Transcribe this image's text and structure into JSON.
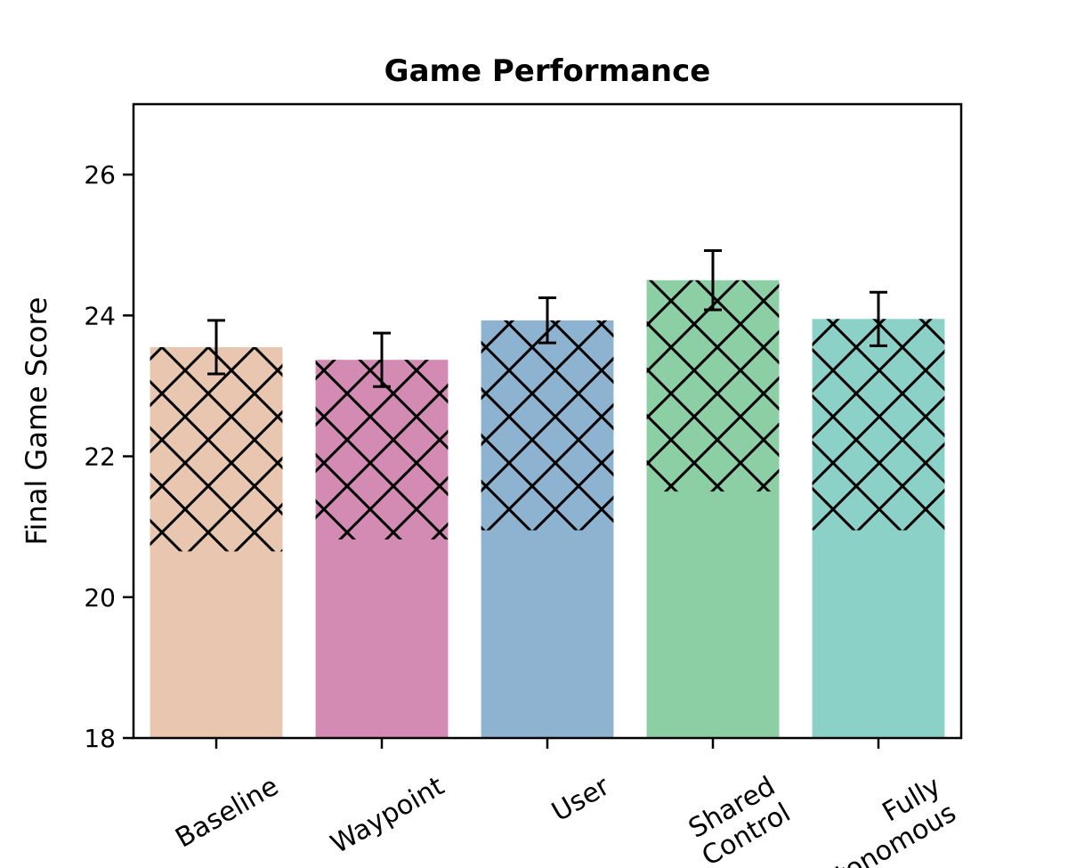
{
  "chart_data": {
    "type": "bar",
    "title": "Game Performance",
    "xlabel": "",
    "ylabel": "Final Game Score",
    "ylim": [
      18,
      27
    ],
    "yticks": [
      "18",
      "20",
      "22",
      "24",
      "26"
    ],
    "categories": [
      [
        "Baseline"
      ],
      [
        "Waypoint"
      ],
      [
        "User"
      ],
      [
        "Shared",
        "Control"
      ],
      [
        "Fully",
        "Autonomous"
      ]
    ],
    "values": [
      23.55,
      23.37,
      23.93,
      24.5,
      23.95
    ],
    "error": [
      0.38,
      0.38,
      0.32,
      0.42,
      0.38
    ],
    "hatch_start": [
      20.65,
      20.82,
      20.95,
      21.5,
      20.95
    ],
    "colors": [
      "#e8c6b0",
      "#d38bb4",
      "#8eb3d1",
      "#8dcfa5",
      "#8cd1c8"
    ],
    "hatch": "crosshatch",
    "grid": false,
    "legend": "none"
  }
}
